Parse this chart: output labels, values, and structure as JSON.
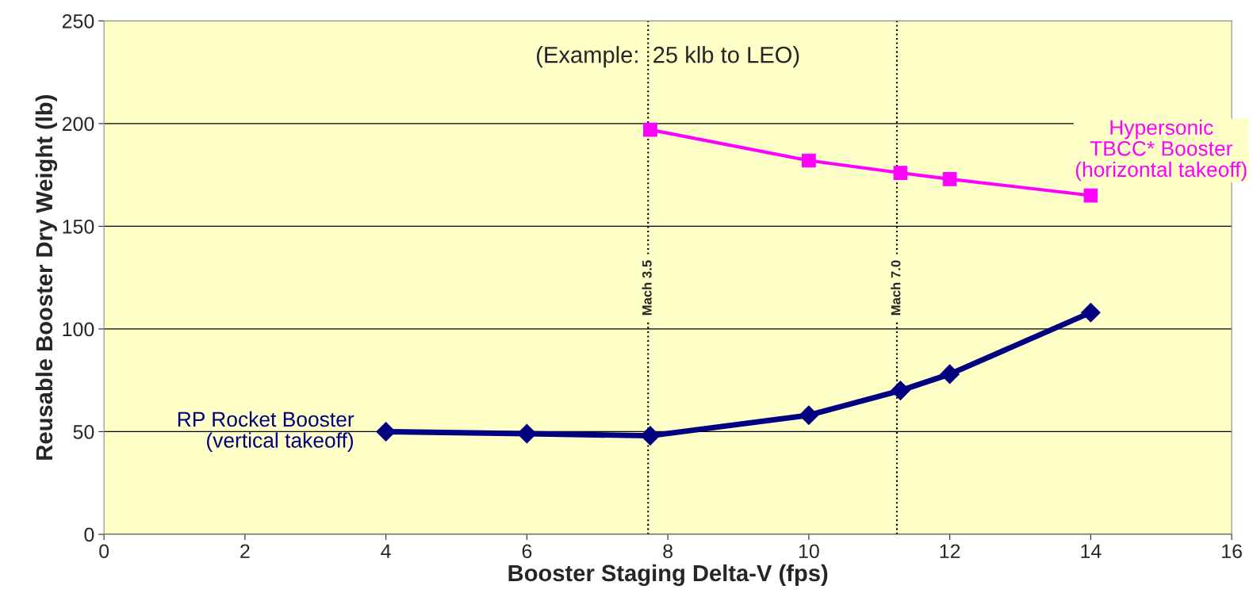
{
  "chart_data": {
    "type": "line",
    "xlabel": "Booster Staging Delta-V (fps)",
    "ylabel": "Reusable Booster Dry Weight (lb)",
    "annotations": [
      "(Example:  25 klb to LEO)"
    ],
    "series": [
      {
        "name": "RP Rocket Booster\n(vertical takeoff)",
        "color": "#000080",
        "marker": "diamond",
        "x": [
          4,
          6,
          7.75,
          10,
          11.3,
          12,
          14
        ],
        "values": [
          50,
          49,
          48,
          58,
          70,
          78,
          108
        ]
      },
      {
        "name": "Hypersonic\nTBCC* Booster\n(horizontal takeoff)",
        "color": "#ff00ff",
        "marker": "square",
        "x": [
          7.75,
          10,
          11.3,
          12,
          14
        ],
        "values": [
          197,
          182,
          176,
          173,
          165
        ]
      }
    ],
    "ref_lines": [
      {
        "axis": "x",
        "value": 7.72,
        "label": "Mach 3.5",
        "line_style": "dotted",
        "color": "#000000"
      },
      {
        "axis": "x",
        "value": 11.25,
        "label": "Mach 7.0",
        "line_style": "dotted",
        "color": "#000000"
      }
    ],
    "xlim": [
      0,
      16
    ],
    "xticks": [
      0,
      2,
      4,
      6,
      8,
      10,
      12,
      14,
      16
    ],
    "ylim": [
      0,
      250
    ],
    "yticks": [
      0,
      50,
      100,
      150,
      200,
      250
    ],
    "grid": "y",
    "legend": false
  }
}
